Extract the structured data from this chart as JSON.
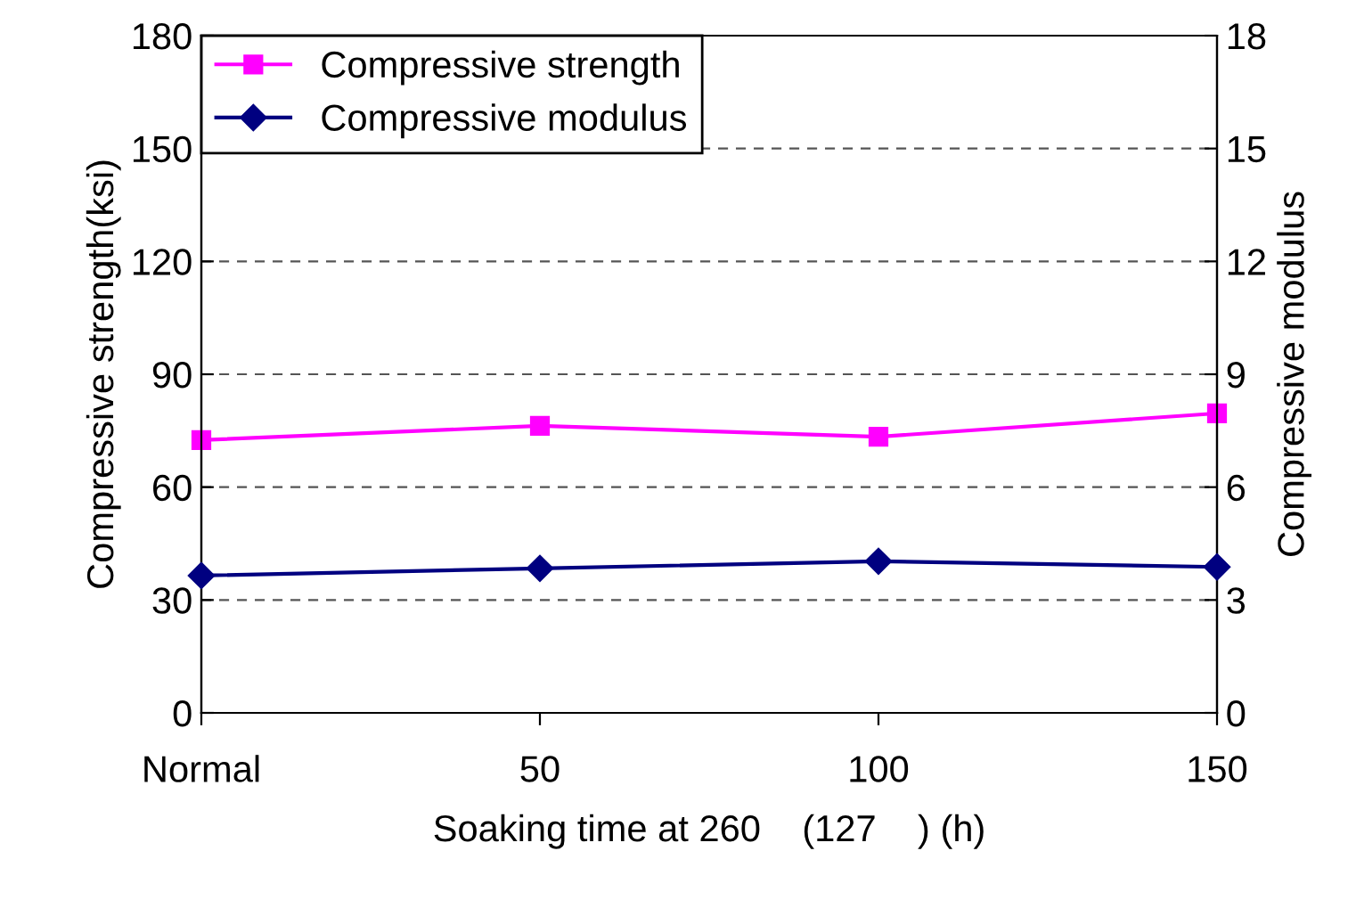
{
  "chart_data": {
    "type": "line",
    "xlabel": "Soaking time at 260    (127    ) (h)",
    "ylabel": "Compressive strength(ksi)",
    "y2label": "Compressive modulus",
    "categories": [
      "Normal",
      "50",
      "100",
      "150"
    ],
    "series": [
      {
        "name": "Compressive strength",
        "color": "#ff00ff",
        "marker": "square",
        "values": [
          72.5,
          76.3,
          73.4,
          79.6
        ]
      },
      {
        "name": "Compressive modulus",
        "color": "#000080",
        "marker": "diamond",
        "axis": "y2",
        "values": [
          3.65,
          3.84,
          4.03,
          3.88
        ]
      }
    ],
    "ylim": [
      0,
      180
    ],
    "yticks": [
      0,
      30,
      60,
      90,
      120,
      150,
      180
    ],
    "y2lim": [
      0,
      18
    ],
    "y2ticks": [
      0,
      3,
      6,
      9,
      12,
      15,
      18
    ],
    "grid": "y",
    "legend": "top left",
    "line_style": "solid"
  }
}
